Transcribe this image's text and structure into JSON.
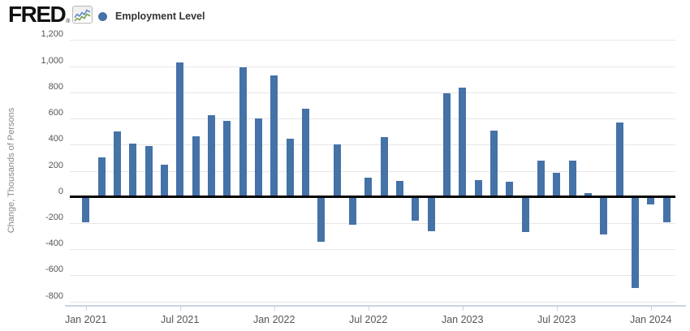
{
  "brand": {
    "logo_text": "FRED",
    "registered_mark": "®"
  },
  "legend": {
    "marker_color": "#4572a7",
    "label": "Employment Level"
  },
  "chart_data": {
    "type": "bar",
    "title": "",
    "xlabel": "",
    "ylabel": "Change, Thousands of Persons",
    "grid": "horizontal",
    "legend_position": "top-left",
    "zero_line": true,
    "ylim": [
      -800,
      1200
    ],
    "ytick_step": 200,
    "yticks": [
      {
        "value": 1200,
        "label": "1,200"
      },
      {
        "value": 1000,
        "label": "1,000"
      },
      {
        "value": 800,
        "label": "800"
      },
      {
        "value": 600,
        "label": "600"
      },
      {
        "value": 400,
        "label": "400"
      },
      {
        "value": 200,
        "label": "200"
      },
      {
        "value": 0,
        "label": "0"
      },
      {
        "value": -200,
        "label": "-200"
      },
      {
        "value": -400,
        "label": "-400"
      },
      {
        "value": -600,
        "label": "-600"
      },
      {
        "value": -800,
        "label": "-800"
      }
    ],
    "xticks": [
      {
        "index": 0,
        "label": "Jan 2021"
      },
      {
        "index": 6,
        "label": "Jul 2021"
      },
      {
        "index": 12,
        "label": "Jan 2022"
      },
      {
        "index": 18,
        "label": "Jul 2022"
      },
      {
        "index": 24,
        "label": "Jan 2023"
      },
      {
        "index": 30,
        "label": "Jul 2023"
      },
      {
        "index": 36,
        "label": "Jan 2024"
      }
    ],
    "series_name": "Employment Level",
    "categories": [
      "Jan 2021",
      "Feb 2021",
      "Mar 2021",
      "Apr 2021",
      "May 2021",
      "Jun 2021",
      "Jul 2021",
      "Aug 2021",
      "Sep 2021",
      "Oct 2021",
      "Nov 2021",
      "Dec 2021",
      "Jan 2022",
      "Feb 2022",
      "Mar 2022",
      "Apr 2022",
      "May 2022",
      "Jun 2022",
      "Jul 2022",
      "Aug 2022",
      "Sep 2022",
      "Oct 2022",
      "Nov 2022",
      "Dec 2022",
      "Jan 2023",
      "Feb 2023",
      "Mar 2023",
      "Apr 2023",
      "May 2023",
      "Jun 2023",
      "Jul 2023",
      "Aug 2023",
      "Sep 2023",
      "Oct 2023",
      "Nov 2023",
      "Dec 2023",
      "Jan 2024",
      "Feb 2024"
    ],
    "values": [
      -195,
      300,
      500,
      410,
      390,
      245,
      1030,
      465,
      625,
      585,
      990,
      600,
      930,
      445,
      675,
      -345,
      405,
      -215,
      150,
      455,
      120,
      -180,
      -265,
      795,
      835,
      130,
      505,
      115,
      -270,
      280,
      185,
      275,
      30,
      -290,
      570,
      -700,
      -55,
      -195
    ]
  },
  "colors": {
    "bar": "#4572a7",
    "gridline": "#e6e6e6",
    "zero_line": "#000000",
    "axis_line": "#c9d4e4",
    "tick_label": "#555555",
    "axis_title": "#888888",
    "legend_text": "#333333",
    "logo_sparkline_blue": "#5b8bbf",
    "logo_sparkline_green": "#74a04c"
  }
}
